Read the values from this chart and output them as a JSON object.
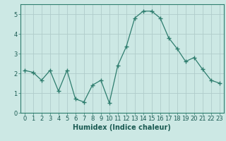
{
  "x": [
    0,
    1,
    2,
    3,
    4,
    5,
    6,
    7,
    8,
    9,
    10,
    11,
    12,
    13,
    14,
    15,
    16,
    17,
    18,
    19,
    20,
    21,
    22,
    23
  ],
  "y": [
    2.15,
    2.05,
    1.65,
    2.15,
    1.1,
    2.15,
    0.7,
    0.55,
    1.4,
    1.65,
    0.5,
    2.4,
    3.35,
    4.8,
    5.15,
    5.15,
    4.8,
    3.8,
    3.25,
    2.6,
    2.8,
    2.2,
    1.65,
    1.5
  ],
  "line_color": "#2e7d6e",
  "marker": "+",
  "marker_size": 4,
  "bg_color": "#cce8e4",
  "grid_color": "#b0ccca",
  "xlabel": "Humidex (Indice chaleur)",
  "xlim": [
    -0.5,
    23.5
  ],
  "ylim": [
    0,
    5.5
  ],
  "yticks": [
    0,
    1,
    2,
    3,
    4,
    5
  ],
  "xticks": [
    0,
    1,
    2,
    3,
    4,
    5,
    6,
    7,
    8,
    9,
    10,
    11,
    12,
    13,
    14,
    15,
    16,
    17,
    18,
    19,
    20,
    21,
    22,
    23
  ],
  "xlabel_fontsize": 7,
  "tick_fontsize": 6
}
